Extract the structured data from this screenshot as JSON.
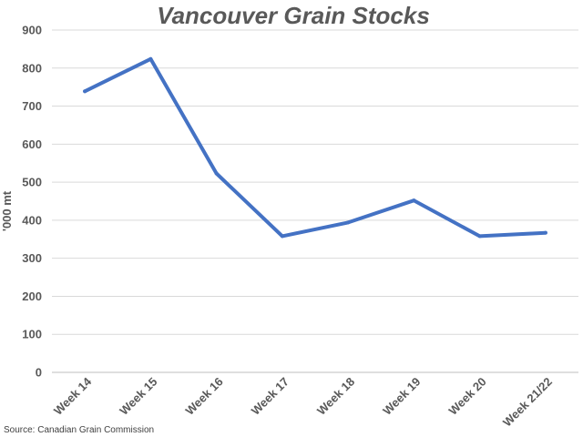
{
  "chart_data": {
    "type": "line",
    "title": "Vancouver Grain Stocks",
    "ylabel": "'000 mt",
    "xlabel": "",
    "ylim": [
      0,
      900
    ],
    "yticks": [
      0,
      100,
      200,
      300,
      400,
      500,
      600,
      700,
      800,
      900
    ],
    "categories": [
      "Week 14",
      "Week 15",
      "Week 16",
      "Week 17",
      "Week 18",
      "Week 19",
      "Week 20",
      "Week 21/22"
    ],
    "series": [
      {
        "values": [
          739,
          824,
          523,
          358,
          394,
          452,
          358,
          367
        ],
        "color": "#4472c4"
      }
    ],
    "grid": true,
    "legend": "none"
  },
  "source": "Source: Canadian Grain Commission"
}
